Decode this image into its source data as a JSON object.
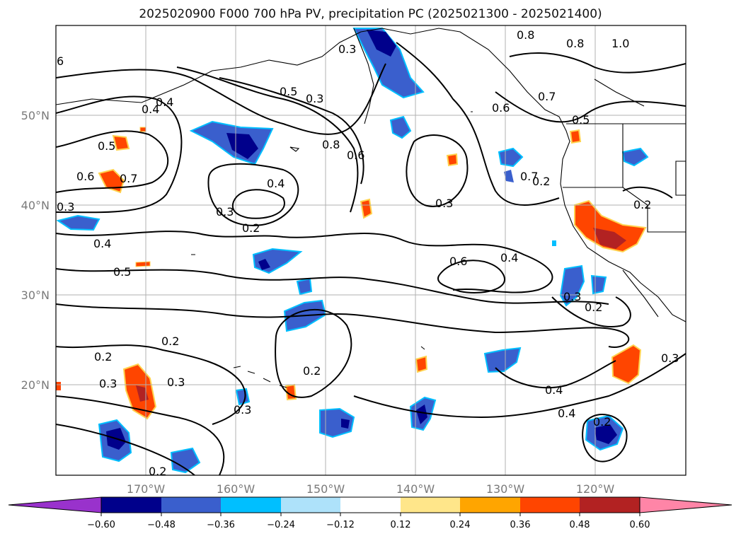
{
  "title": "2025020900 F000 700 hPa PV, precipitation PC (2025021300 - 2025021400)",
  "axes": {
    "lat_ticks": [
      "50°N",
      "40°N",
      "30°N",
      "20°N"
    ],
    "lon_ticks": [
      "170°W",
      "160°W",
      "150°W",
      "140°W",
      "130°W",
      "120°W"
    ]
  },
  "contour_labels": [
    "6",
    "0.4",
    "0.3",
    "0.8",
    "0.8",
    "1.0",
    "0.5",
    "0.3",
    "0.4",
    "0.4",
    "0.8",
    "0.6",
    "0.6",
    "0.7",
    "0.7",
    "0.5",
    "0.5",
    "0.6",
    "0.7",
    "0.4",
    "0.3",
    "0.3",
    "0.2",
    "0.3",
    "0.2",
    "0.4",
    "0.5",
    "0.6",
    "0.4",
    "0.3",
    "0.2",
    "0.2",
    "0.2",
    "0.3",
    "0.3",
    "0.2",
    "0.3",
    "0.4",
    "0.2",
    "0.3",
    "0.2",
    "0.2"
  ],
  "colorbar": {
    "ticks": [
      "−0.60",
      "−0.48",
      "−0.36",
      "−0.24",
      "−0.12",
      "0.12",
      "0.24",
      "0.36",
      "0.48",
      "0.60"
    ],
    "colors": [
      "#9932cc",
      "#00008b",
      "#3a5fcd",
      "#00bfff",
      "#aee2fa",
      "#ffffff",
      "#ffe68a",
      "#ffa500",
      "#ff4500",
      "#b22222",
      "#ff85a7"
    ]
  },
  "fill_colors": {
    "deep_blue": "#00008b",
    "mid_blue": "#3a5fcd",
    "light_blue": "#00bfff",
    "orange": "#ff4500",
    "dark_red": "#b22222",
    "yellow": "#ffd24d"
  }
}
